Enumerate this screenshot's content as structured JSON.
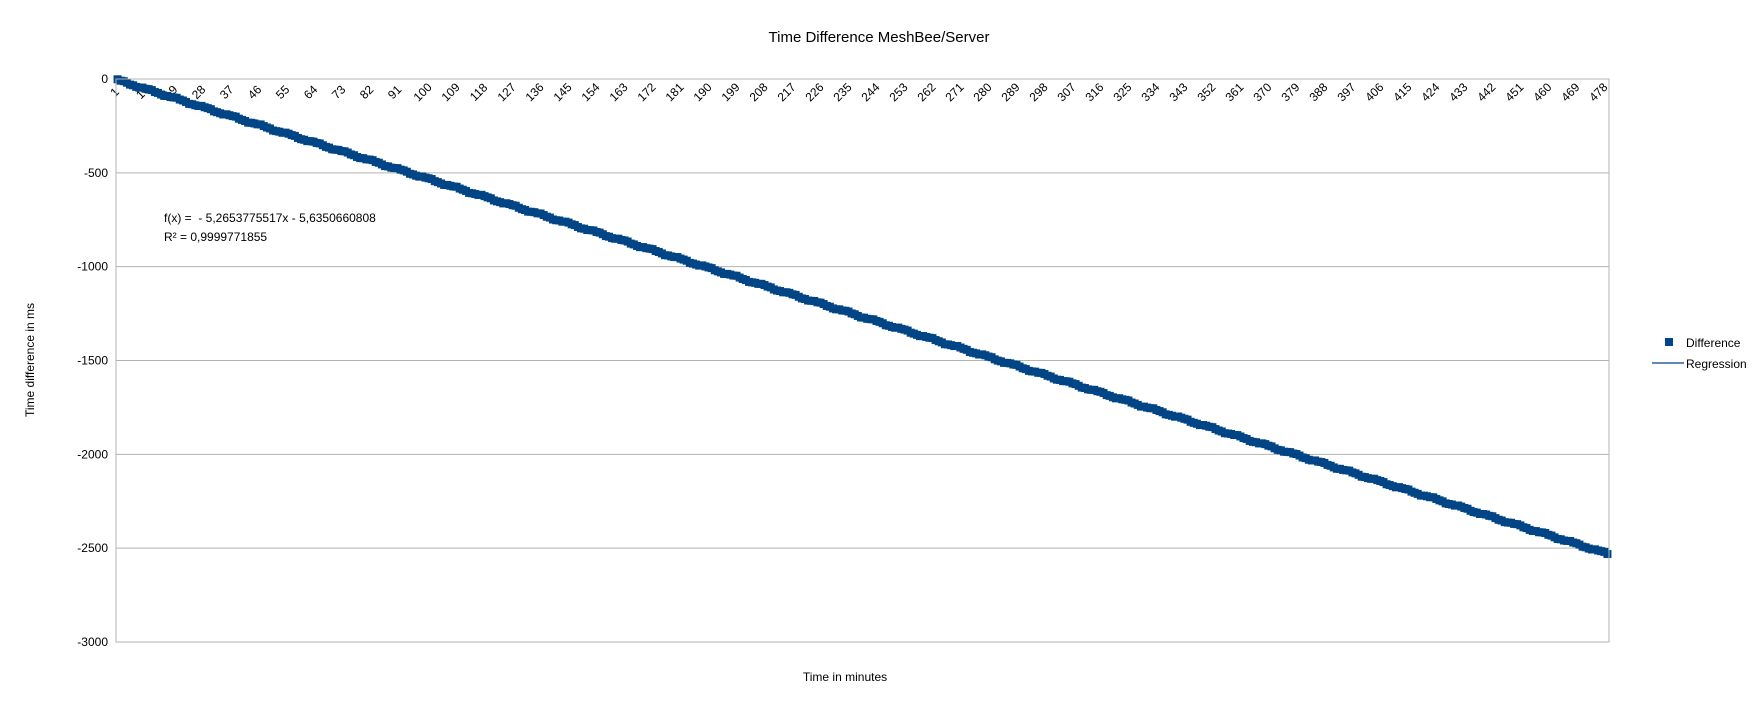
{
  "chart_data": {
    "type": "scatter",
    "title": "Time Difference MeshBee/Server",
    "xlabel": "Time in minutes",
    "ylabel": "Time difference in ms",
    "x_categories_start": 1,
    "x_categories_end": 480,
    "x_tick_labels": [
      "1",
      "10",
      "19",
      "28",
      "37",
      "46",
      "55",
      "64",
      "73",
      "82",
      "91",
      "100",
      "109",
      "118",
      "127",
      "136",
      "145",
      "154",
      "163",
      "172",
      "181",
      "190",
      "199",
      "208",
      "217",
      "226",
      "235",
      "244",
      "253",
      "262",
      "271",
      "280",
      "289",
      "298",
      "307",
      "316",
      "325",
      "334",
      "343",
      "352",
      "361",
      "370",
      "379",
      "388",
      "397",
      "406",
      "415",
      "424",
      "433",
      "442",
      "451",
      "460",
      "469",
      "478"
    ],
    "ylim": [
      -3000,
      0
    ],
    "y_ticks": [
      0,
      -500,
      -1000,
      -1500,
      -2000,
      -2500,
      -3000
    ],
    "grid": true,
    "legend_position": "right",
    "series": [
      {
        "name": "Difference",
        "marker": "square",
        "color": "#004586",
        "x_start": 1,
        "x_end": 480,
        "y_start": -5.6,
        "y_end": -2530
      },
      {
        "name": "Regression",
        "line": true,
        "color": "#004586",
        "slope": -5.2653775517,
        "intercept": -5.6350660808
      }
    ],
    "regression_equation": "f(x) =  - 5,2653775517x - 5,6350660808",
    "r_squared": "R² = 0,9999771855"
  }
}
